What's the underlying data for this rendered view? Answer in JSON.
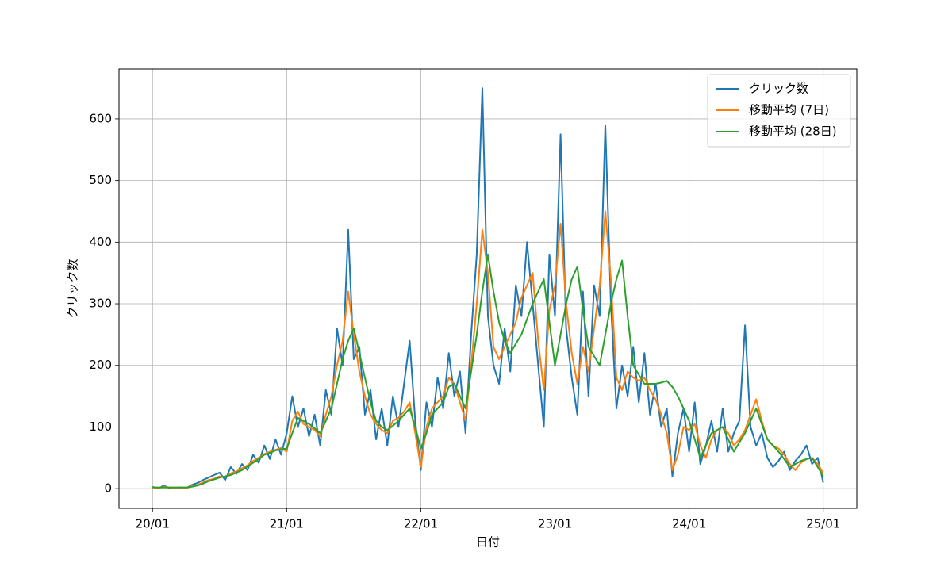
{
  "chart_data": {
    "type": "line",
    "xlabel": "日付",
    "ylabel": "クリック数",
    "x": [
      0,
      0.5,
      1,
      1.5,
      2,
      2.5,
      3,
      3.5,
      4,
      4.5,
      5,
      5.5,
      6,
      6.5,
      7,
      7.5,
      8,
      8.5,
      9,
      9.5,
      10,
      10.5,
      11,
      11.5,
      12,
      12.5,
      13,
      13.5,
      14,
      14.5,
      15,
      15.5,
      16,
      16.5,
      17,
      17.5,
      18,
      18.5,
      19,
      19.5,
      20,
      20.5,
      21,
      21.5,
      22,
      22.5,
      23,
      23.5,
      24,
      24.5,
      25,
      25.5,
      26,
      26.5,
      27,
      27.5,
      28,
      28.5,
      29,
      29.5,
      30,
      30.5,
      31,
      31.5,
      32,
      32.5,
      33,
      33.5,
      34,
      34.5,
      35,
      35.5,
      36,
      36.5,
      37,
      37.5,
      38,
      38.5,
      39,
      39.5,
      40,
      40.5,
      41,
      41.5,
      42,
      42.5,
      43,
      43.5,
      44,
      44.5,
      45,
      45.5,
      46,
      46.5,
      47,
      47.5,
      48,
      48.5,
      49,
      49.5,
      50,
      50.5,
      51,
      51.5,
      52,
      52.5,
      53,
      53.5,
      54,
      54.5,
      55,
      55.5,
      56,
      56.5,
      57,
      57.5,
      58,
      58.5,
      59,
      59.5,
      60
    ],
    "series": [
      {
        "name": "クリック数",
        "color": "#1f77b4",
        "values": [
          3,
          0,
          5,
          1,
          0,
          2,
          0,
          6,
          9,
          14,
          18,
          22,
          26,
          14,
          35,
          24,
          40,
          30,
          55,
          42,
          70,
          48,
          80,
          55,
          90,
          150,
          100,
          130,
          85,
          120,
          70,
          160,
          120,
          260,
          200,
          420,
          210,
          230,
          120,
          160,
          80,
          130,
          70,
          150,
          100,
          170,
          240,
          110,
          30,
          140,
          100,
          180,
          130,
          220,
          150,
          190,
          90,
          250,
          380,
          650,
          280,
          200,
          170,
          260,
          190,
          330,
          280,
          400,
          300,
          200,
          100,
          380,
          280,
          575,
          260,
          180,
          120,
          320,
          150,
          330,
          280,
          590,
          300,
          130,
          200,
          150,
          230,
          140,
          220,
          120,
          170,
          100,
          130,
          20,
          90,
          130,
          60,
          140,
          40,
          70,
          110,
          60,
          130,
          60,
          90,
          110,
          265,
          100,
          70,
          90,
          50,
          35,
          45,
          60,
          30,
          45,
          55,
          70,
          40,
          50,
          10
        ]
      },
      {
        "name": "移動平均 (7日)",
        "color": "#ff7f0e",
        "values": [
          2,
          1,
          3,
          2,
          1,
          2,
          1,
          4,
          6,
          10,
          14,
          16,
          20,
          19,
          25,
          28,
          33,
          38,
          45,
          50,
          56,
          60,
          63,
          66,
          60,
          110,
          125,
          105,
          100,
          95,
          85,
          120,
          150,
          200,
          240,
          320,
          250,
          190,
          150,
          120,
          105,
          95,
          90,
          110,
          115,
          125,
          140,
          90,
          35,
          100,
          130,
          140,
          150,
          180,
          170,
          140,
          110,
          200,
          300,
          420,
          350,
          230,
          210,
          230,
          250,
          270,
          310,
          330,
          350,
          240,
          160,
          290,
          330,
          430,
          300,
          220,
          170,
          230,
          190,
          260,
          330,
          450,
          340,
          180,
          160,
          190,
          180,
          175,
          180,
          160,
          145,
          120,
          90,
          30,
          55,
          100,
          95,
          105,
          70,
          50,
          80,
          95,
          100,
          90,
          70,
          80,
          95,
          120,
          145,
          110,
          80,
          70,
          65,
          55,
          40,
          30,
          42,
          48,
          50,
          40,
          25
        ]
      },
      {
        "name": "移動平均 (28日)",
        "color": "#2ca02c",
        "values": [
          2,
          2,
          2,
          2,
          2,
          2,
          2,
          3,
          5,
          8,
          12,
          15,
          18,
          20,
          22,
          26,
          30,
          36,
          42,
          48,
          55,
          58,
          62,
          64,
          65,
          90,
          115,
          110,
          105,
          98,
          90,
          110,
          130,
          170,
          210,
          240,
          260,
          220,
          180,
          140,
          110,
          100,
          95,
          102,
          110,
          120,
          130,
          100,
          65,
          90,
          120,
          130,
          140,
          165,
          170,
          150,
          130,
          190,
          250,
          320,
          380,
          320,
          270,
          240,
          220,
          235,
          250,
          275,
          300,
          320,
          340,
          270,
          200,
          250,
          300,
          340,
          360,
          290,
          230,
          215,
          200,
          250,
          300,
          340,
          370,
          280,
          200,
          185,
          170,
          170,
          170,
          172,
          175,
          165,
          150,
          130,
          110,
          80,
          50,
          70,
          90,
          95,
          100,
          80,
          60,
          75,
          90,
          110,
          130,
          105,
          80,
          70,
          60,
          48,
          35,
          40,
          45,
          48,
          50,
          35,
          20
        ]
      }
    ],
    "xlim": [
      -3,
      63
    ],
    "xticks": [
      {
        "value": 0,
        "label": "20/01"
      },
      {
        "value": 12,
        "label": "21/01"
      },
      {
        "value": 24,
        "label": "22/01"
      },
      {
        "value": 36,
        "label": "23/01"
      },
      {
        "value": 48,
        "label": "24/01"
      },
      {
        "value": 60,
        "label": "25/01"
      }
    ],
    "ylim": [
      -32,
      681
    ],
    "yticks": [
      0,
      100,
      200,
      300,
      400,
      500,
      600
    ],
    "grid": true,
    "legend": "upper right"
  }
}
